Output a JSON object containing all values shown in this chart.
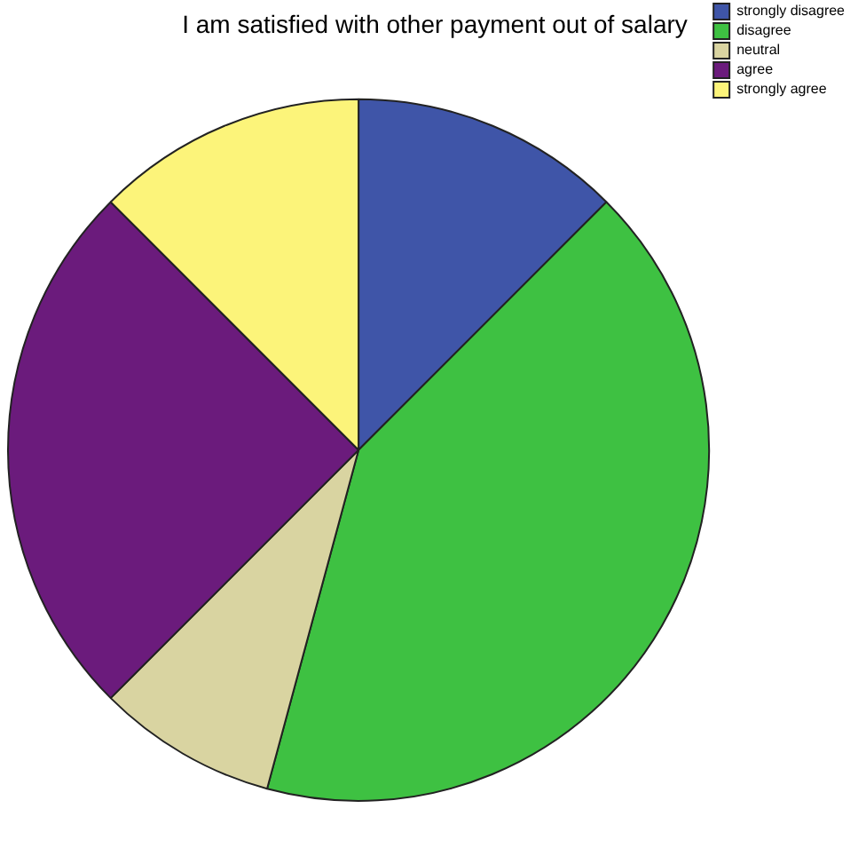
{
  "chart_data": {
    "type": "pie",
    "title": "I am satisfied with other payment out of salary",
    "categories": [
      "strongly disagree",
      "disagree",
      "neutral",
      "agree",
      "strongly agree"
    ],
    "values": [
      12.5,
      41.7,
      8.3,
      25,
      12.5
    ],
    "colors": [
      "#3f55a8",
      "#3ec142",
      "#d9d4a1",
      "#6b1b7c",
      "#fcf47a"
    ],
    "legend": "top right"
  }
}
